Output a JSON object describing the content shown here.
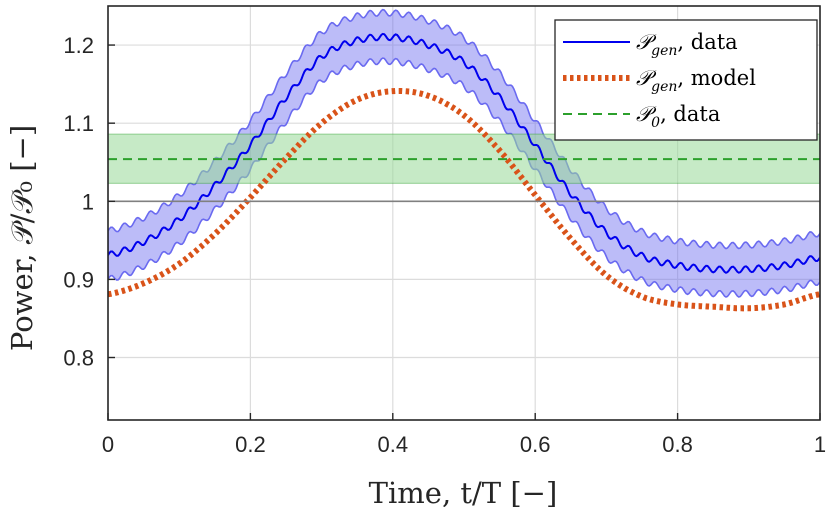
{
  "chart_data": {
    "type": "line",
    "title": "",
    "xlabel": "Time, t/T [−]",
    "ylabel": "Power, 𝒫/𝒫₀ [−]",
    "xlim": [
      0,
      1
    ],
    "ylim": [
      0.72,
      1.25
    ],
    "xticks": [
      0,
      0.2,
      0.4,
      0.6,
      0.8,
      1
    ],
    "xtick_labels": [
      "0",
      "0.2",
      "0.4",
      "0.6",
      "0.8",
      "1"
    ],
    "yticks": [
      0.8,
      0.9,
      1.0,
      1.1,
      1.2
    ],
    "ytick_labels": [
      "0.8",
      "0.9",
      "1",
      "1.1",
      "1.2"
    ],
    "grid": true,
    "legend_position": "top-right",
    "reference_line": {
      "y": 1.0,
      "color": "#808080"
    },
    "series": [
      {
        "name": "gen_data",
        "legend_symbol": "𝒫",
        "legend_subscript": "gen",
        "legend_suffix": ", data",
        "style": "solid",
        "color": "#0000ee",
        "band_color": "#6a6af0",
        "band_halfwidth": 0.031,
        "oscillation_amplitude": 0.004,
        "oscillation_cycles": 55,
        "x": [
          0,
          0.05,
          0.1,
          0.15,
          0.2,
          0.25,
          0.3,
          0.35,
          0.4,
          0.45,
          0.5,
          0.55,
          0.6,
          0.65,
          0.7,
          0.75,
          0.8,
          0.85,
          0.9,
          0.95,
          1.0
        ],
        "values": [
          0.931,
          0.948,
          0.977,
          1.02,
          1.072,
          1.133,
          1.185,
          1.206,
          1.21,
          1.2,
          1.178,
          1.133,
          1.072,
          1.01,
          0.96,
          0.93,
          0.918,
          0.913,
          0.913,
          0.918,
          0.928
        ]
      },
      {
        "name": "gen_model",
        "legend_symbol": "𝒫",
        "legend_subscript": "gen",
        "legend_suffix": ", model",
        "style": "dotted",
        "color": "#d95319",
        "x": [
          0,
          0.05,
          0.1,
          0.15,
          0.2,
          0.25,
          0.3,
          0.35,
          0.4,
          0.45,
          0.5,
          0.55,
          0.6,
          0.65,
          0.7,
          0.75,
          0.8,
          0.85,
          0.9,
          0.95,
          1.0
        ],
        "values": [
          0.881,
          0.895,
          0.92,
          0.958,
          1.005,
          1.055,
          1.1,
          1.13,
          1.141,
          1.135,
          1.11,
          1.065,
          1.008,
          0.952,
          0.905,
          0.878,
          0.868,
          0.865,
          0.863,
          0.868,
          0.881
        ]
      },
      {
        "name": "p0_data",
        "legend_symbol": "𝒫",
        "legend_subscript": "0",
        "legend_suffix": ", data",
        "style": "dashed",
        "color": "#2ca02c",
        "band_color": "#98d898",
        "band_low": 1.023,
        "band_high": 1.086,
        "x": [
          0,
          1
        ],
        "values": [
          1.054,
          1.054
        ]
      }
    ]
  }
}
